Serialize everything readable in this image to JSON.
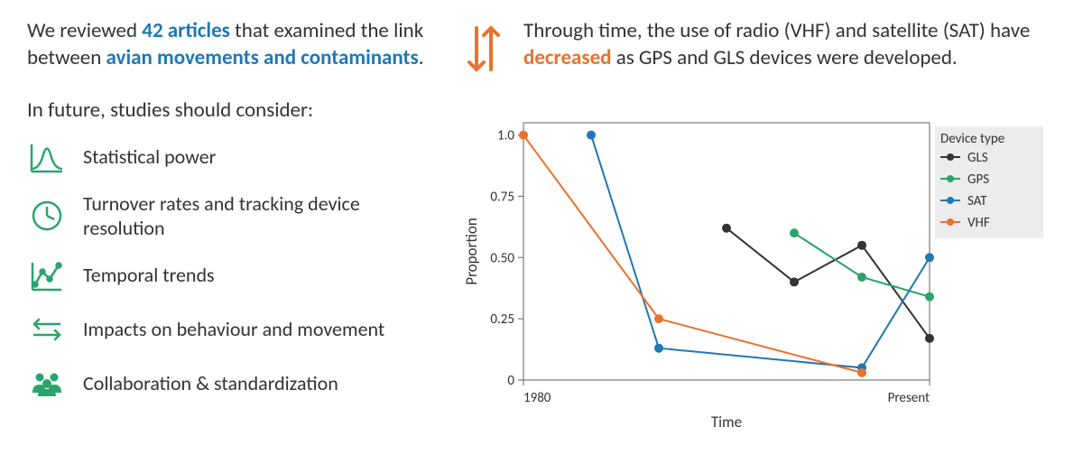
{
  "colors": {
    "blue": "#2077b4",
    "orange": "#e9722c",
    "icon_green": "#2aa46b",
    "text": "#333333",
    "grid": "#7a7a7a",
    "legend_bg": "#ececec",
    "bg": "#ffffff"
  },
  "left": {
    "intro_parts": {
      "p1": "We reviewed ",
      "hl1": "42 articles",
      "p2": " that examined the link between ",
      "hl2": "avian movements and contaminants",
      "p3": "."
    },
    "future_heading": "In future, studies should consider:",
    "items": [
      {
        "icon": "bell-curve",
        "label": "Statistical power"
      },
      {
        "icon": "clock",
        "label": "Turnover rates and tracking device resolution"
      },
      {
        "icon": "trend",
        "label": "Temporal trends"
      },
      {
        "icon": "arrows-lr",
        "label": "Impacts on behaviour and movement"
      },
      {
        "icon": "people",
        "label": "Collaboration & standardization"
      }
    ]
  },
  "right": {
    "text_parts": {
      "p1": "Through time, the use of radio (VHF) and satellite (SAT) have ",
      "hl": "decreased",
      "p2": " as GPS and GLS devices were developed."
    }
  },
  "chart": {
    "type": "line",
    "xlabel": "Time",
    "ylabel": "Proportion",
    "xlim": [
      0,
      6
    ],
    "ylim": [
      0,
      1.05
    ],
    "yticks": [
      0,
      0.25,
      0.5,
      0.75,
      1.0
    ],
    "ytick_labels": [
      "0",
      "0.25",
      "0.50",
      "0.75",
      "1.0"
    ],
    "xtick_positions": [
      0,
      6
    ],
    "xtick_labels": [
      "1980",
      "Present"
    ],
    "line_width": 2,
    "marker_radius": 5,
    "series": [
      {
        "name": "GLS",
        "color": "#333333",
        "points": [
          {
            "x": 3.0,
            "y": 0.62
          },
          {
            "x": 4.0,
            "y": 0.4
          },
          {
            "x": 5.0,
            "y": 0.55
          },
          {
            "x": 6.0,
            "y": 0.17
          }
        ]
      },
      {
        "name": "GPS",
        "color": "#2aa46b",
        "points": [
          {
            "x": 4.0,
            "y": 0.6
          },
          {
            "x": 5.0,
            "y": 0.42
          },
          {
            "x": 6.0,
            "y": 0.34
          }
        ]
      },
      {
        "name": "SAT",
        "color": "#2077b4",
        "points": [
          {
            "x": 1.0,
            "y": 1.0
          },
          {
            "x": 2.0,
            "y": 0.13
          },
          {
            "x": 5.0,
            "y": 0.05
          },
          {
            "x": 6.0,
            "y": 0.5
          }
        ]
      },
      {
        "name": "VHF",
        "color": "#e9722c",
        "points": [
          {
            "x": 0.0,
            "y": 1.0
          },
          {
            "x": 2.0,
            "y": 0.25
          },
          {
            "x": 5.0,
            "y": 0.03
          }
        ]
      }
    ],
    "legend": {
      "title": "Device type",
      "position": "right",
      "bg": "#ececec"
    }
  }
}
